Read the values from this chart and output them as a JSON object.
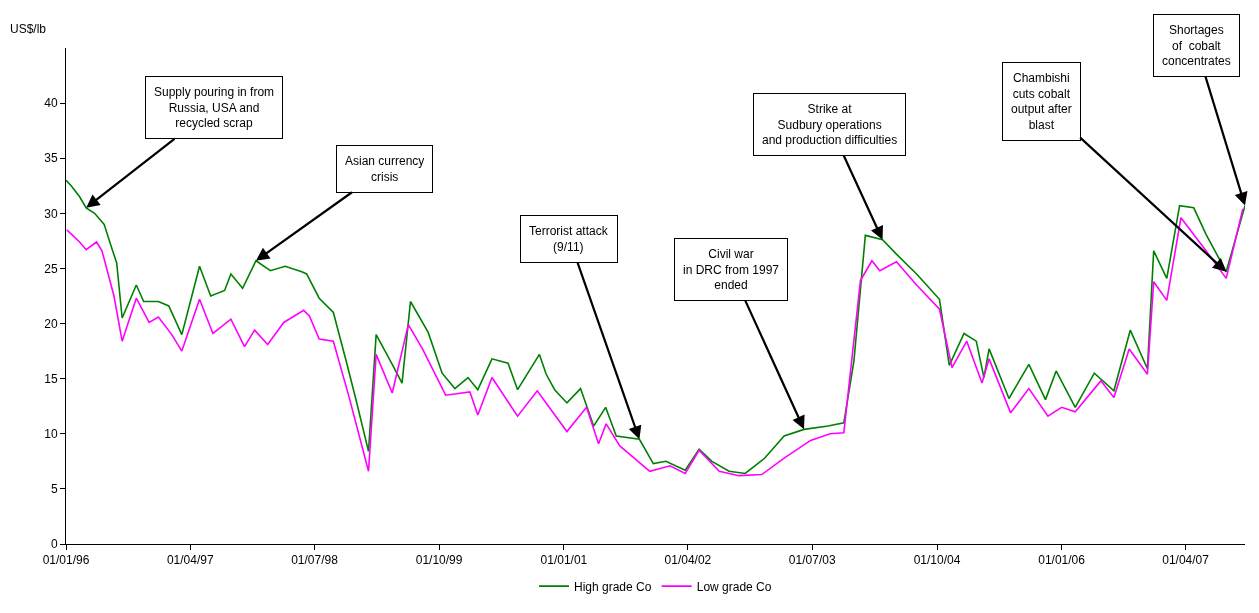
{
  "chart_data": {
    "type": "line",
    "ylabel": "US$/lb",
    "xlim": [
      "1996-01-01",
      "2007-11-05"
    ],
    "ylim": [
      0,
      45
    ],
    "xticks": [
      {
        "value": "1996-01-01",
        "label": "01/01/96"
      },
      {
        "value": "1997-04-01",
        "label": "01/04/97"
      },
      {
        "value": "1998-07-01",
        "label": "01/07/98"
      },
      {
        "value": "1999-10-01",
        "label": "01/10/99"
      },
      {
        "value": "2001-01-01",
        "label": "01/01/01"
      },
      {
        "value": "2002-04-01",
        "label": "01/04/02"
      },
      {
        "value": "2003-07-01",
        "label": "01/07/03"
      },
      {
        "value": "2004-10-01",
        "label": "01/10/04"
      },
      {
        "value": "2006-01-01",
        "label": "01/01/06"
      },
      {
        "value": "2007-04-01",
        "label": "01/04/07"
      }
    ],
    "yticks": [
      0,
      5,
      10,
      15,
      20,
      25,
      30,
      35,
      40
    ],
    "legend": "bottom",
    "marker": "none",
    "line_style": "solid",
    "series": [
      {
        "name": "High grade Co",
        "color": "#008000",
        "x": [
          "1996-01-01",
          "1996-01-20",
          "1996-02-20",
          "1996-03-15",
          "1996-04-15",
          "1996-05-20",
          "1996-06-15",
          "1996-07-05",
          "1996-07-25",
          "1996-09-15",
          "1996-10-12",
          "1996-12-05",
          "1997-01-12",
          "1997-03-01",
          "1997-05-05",
          "1997-06-15",
          "1997-08-05",
          "1997-08-28",
          "1997-10-10",
          "1997-11-28",
          "1998-01-20",
          "1998-03-15",
          "1998-05-15",
          "1998-06-02",
          "1998-07-18",
          "1998-09-08",
          "1998-10-25",
          "1998-12-01",
          "1999-01-15",
          "1999-02-12",
          "1999-04-12",
          "1999-05-18",
          "1999-06-18",
          "1999-08-22",
          "1999-10-12",
          "1999-11-28",
          "2000-01-15",
          "2000-02-20",
          "2000-04-12",
          "2000-06-10",
          "2000-07-15",
          "2000-10-03",
          "2000-10-28",
          "2000-11-28",
          "2001-01-12",
          "2001-03-03",
          "2001-04-20",
          "2001-06-03",
          "2001-07-12",
          "2001-10-05",
          "2001-11-25",
          "2002-01-10",
          "2002-03-22",
          "2002-05-12",
          "2002-06-28",
          "2002-08-30",
          "2002-10-28",
          "2003-01-08",
          "2003-03-20",
          "2003-06-01",
          "2003-08-28",
          "2003-10-25",
          "2003-12-01",
          "2004-01-12",
          "2004-03-15",
          "2004-05-05",
          "2004-07-18",
          "2004-10-10",
          "2004-11-15",
          "2005-01-08",
          "2005-02-22",
          "2005-03-22",
          "2005-04-10",
          "2005-06-22",
          "2005-09-03",
          "2005-11-03",
          "2005-12-12",
          "2006-02-20",
          "2006-05-01",
          "2006-07-12",
          "2006-09-10",
          "2006-11-12",
          "2006-12-05",
          "2007-01-22",
          "2007-03-10",
          "2007-05-01",
          "2007-06-15",
          "2007-08-28",
          "2007-11-05"
        ],
        "values": [
          33,
          32.5,
          31.5,
          30.5,
          30,
          29,
          27,
          25.5,
          20.5,
          23.5,
          22,
          22,
          21.6,
          19,
          25.2,
          22.5,
          23,
          24.5,
          23.2,
          25.7,
          24.8,
          25.2,
          24.7,
          24.5,
          22.3,
          21,
          16.6,
          13,
          8.4,
          19,
          16.3,
          14.6,
          22,
          19.2,
          15.5,
          14.1,
          15.1,
          14,
          16.8,
          16.4,
          14,
          17.2,
          15.4,
          14,
          12.8,
          14.1,
          10.7,
          12.4,
          9.8,
          9.5,
          7.3,
          7.5,
          6.7,
          8.6,
          7.5,
          6.6,
          6.4,
          7.8,
          9.8,
          10.4,
          10.7,
          11,
          16.6,
          28,
          27.6,
          26.3,
          24.5,
          22.2,
          16.2,
          19.1,
          18.4,
          15.1,
          17.7,
          13.2,
          16.3,
          13.1,
          15.7,
          12.4,
          15.5,
          13.9,
          19.4,
          15.9,
          26.6,
          24.1,
          30.7,
          30.5,
          28.1,
          24.7,
          30.7
        ]
      },
      {
        "name": "Low grade Co",
        "color": "#ff00ff",
        "x": [
          "1996-01-04",
          "1996-02-20",
          "1996-03-15",
          "1996-04-22",
          "1996-05-12",
          "1996-06-25",
          "1996-07-25",
          "1996-09-15",
          "1996-11-01",
          "1996-12-05",
          "1997-01-23",
          "1997-03-01",
          "1997-05-05",
          "1997-06-23",
          "1997-08-28",
          "1997-10-17",
          "1997-11-23",
          "1998-01-10",
          "1998-03-10",
          "1998-05-22",
          "1998-06-12",
          "1998-07-18",
          "1998-09-08",
          "1998-11-05",
          "1999-01-15",
          "1999-02-12",
          "1999-04-12",
          "1999-06-10",
          "1999-08-01",
          "1999-10-25",
          "2000-01-22",
          "2000-02-20",
          "2000-04-12",
          "2000-07-15",
          "2000-09-25",
          "2001-01-12",
          "2001-03-25",
          "2001-05-08",
          "2001-06-05",
          "2001-07-25",
          "2001-11-12",
          "2002-01-25",
          "2002-03-22",
          "2002-05-12",
          "2002-07-25",
          "2002-10-05",
          "2002-12-28",
          "2003-03-20",
          "2003-06-25",
          "2003-09-05",
          "2003-10-25",
          "2003-12-25",
          "2004-02-05",
          "2004-03-05",
          "2004-05-05",
          "2004-07-18",
          "2004-10-10",
          "2004-11-25",
          "2005-01-18",
          "2005-03-15",
          "2005-04-10",
          "2005-06-28",
          "2005-09-03",
          "2005-11-12",
          "2006-01-01",
          "2006-02-20",
          "2006-05-25",
          "2006-07-12",
          "2006-09-06",
          "2006-11-12",
          "2006-12-05",
          "2007-01-22",
          "2007-03-15",
          "2007-06-15",
          "2007-08-28",
          "2007-10-28"
        ],
        "values": [
          28.5,
          27.4,
          26.7,
          27.4,
          26.6,
          22.5,
          18.4,
          22.3,
          20.1,
          20.6,
          19,
          17.5,
          22.2,
          19.1,
          20.4,
          17.9,
          19.4,
          18.1,
          20.1,
          21.2,
          20.7,
          18.6,
          18.4,
          13.3,
          6.6,
          17.2,
          13.7,
          19.9,
          17.7,
          13.5,
          13.8,
          11.7,
          15.1,
          11.6,
          13.9,
          10.2,
          12.4,
          9.1,
          10.9,
          8.9,
          6.6,
          7.1,
          6.4,
          8.5,
          6.6,
          6.2,
          6.3,
          7.8,
          9.4,
          10,
          10.1,
          23.9,
          25.7,
          24.8,
          25.6,
          23.5,
          21.3,
          16,
          18.4,
          14.6,
          16.8,
          11.9,
          14.1,
          11.6,
          12.4,
          12,
          14.8,
          13.3,
          17.7,
          15.4,
          23.8,
          22.1,
          29.6,
          26.6,
          24.1,
          30.4
        ]
      }
    ],
    "annotations": [
      {
        "text": "Supply pouring in from\nRussia, USA and\nrecycled scrap",
        "x": "1996-03-15",
        "y": 30.5
      },
      {
        "text": "Asian currency\ncrisis",
        "x": "1997-11-28",
        "y": 25.7
      },
      {
        "text": "Terrorist attack\n(9/11)",
        "x": "2001-10-05",
        "y": 9.5
      },
      {
        "text": "Civil war\nin DRC from 1997\nended",
        "x": "2003-06-01",
        "y": 10.4
      },
      {
        "text": "Strike at\nSudbury operations\nand production difficulties",
        "x": "2004-03-15",
        "y": 27.6
      },
      {
        "text": "Chambishi\ncuts cobalt\noutput after\nblast",
        "x": "2007-08-28",
        "y": 24.7
      },
      {
        "text": "Shortages\nof  cobalt\nconcentrates",
        "x": "2007-11-05",
        "y": 30.7
      }
    ]
  }
}
